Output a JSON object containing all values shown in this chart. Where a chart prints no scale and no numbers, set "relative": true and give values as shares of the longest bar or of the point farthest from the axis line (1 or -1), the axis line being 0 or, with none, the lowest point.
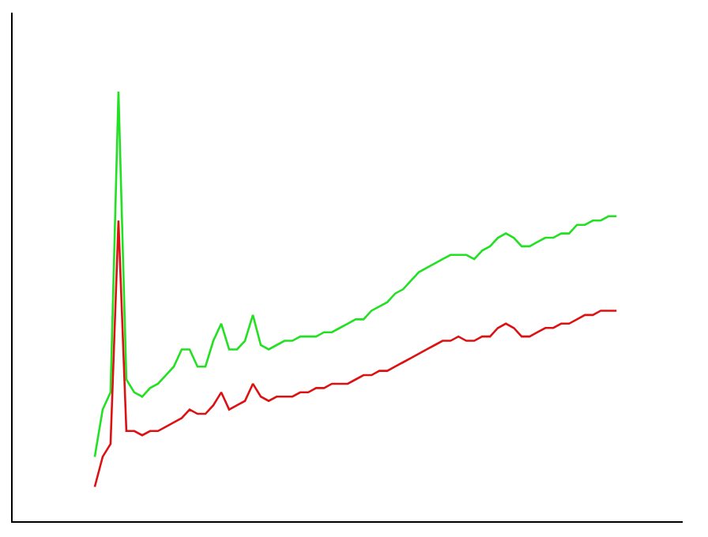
{
  "chart_data": {
    "type": "line",
    "relative": true,
    "tick_labels": false,
    "marker": "none",
    "categories": [
      null,
      null,
      null,
      null,
      null,
      null,
      null,
      null,
      null,
      null,
      null,
      null,
      null,
      null,
      null,
      null,
      null,
      null,
      null,
      null,
      null,
      null,
      null,
      null,
      null,
      null,
      null,
      null,
      null,
      null,
      null,
      null,
      null,
      null,
      null,
      null,
      null,
      null,
      null,
      null,
      null,
      null,
      null,
      null,
      null,
      null,
      null,
      null,
      null,
      null,
      null,
      null,
      null,
      null,
      null,
      null,
      null,
      null,
      null,
      null,
      null,
      null,
      null,
      null,
      null,
      null,
      null
    ],
    "series": [
      {
        "color": "#22e022",
        "values": [
          0.15,
          0.26,
          0.3,
          1,
          0.33,
          0.3,
          0.29,
          0.31,
          0.32,
          0.34,
          0.36,
          0.4,
          0.4,
          0.36,
          0.36,
          0.42,
          0.46,
          0.4,
          0.4,
          0.42,
          0.48,
          0.41,
          0.4,
          0.41,
          0.42,
          0.42,
          0.43,
          0.43,
          0.43,
          0.44,
          0.44,
          0.45,
          0.46,
          0.47,
          0.47,
          0.49,
          0.5,
          0.51,
          0.53,
          0.54,
          0.56,
          0.58,
          0.59,
          0.6,
          0.61,
          0.62,
          0.62,
          0.62,
          0.61,
          0.63,
          0.64,
          0.66,
          0.67,
          0.66,
          0.64,
          0.64,
          0.65,
          0.66,
          0.66,
          0.67,
          0.67,
          0.69,
          0.69,
          0.7,
          0.7,
          0.71,
          0.71
        ]
      },
      {
        "color": "#dd1111",
        "values": [
          0.08,
          0.15,
          0.18,
          0.7,
          0.21,
          0.21,
          0.2,
          0.21,
          0.21,
          0.22,
          0.23,
          0.24,
          0.26,
          0.25,
          0.25,
          0.27,
          0.3,
          0.26,
          0.27,
          0.28,
          0.32,
          0.29,
          0.28,
          0.29,
          0.29,
          0.29,
          0.3,
          0.3,
          0.31,
          0.31,
          0.32,
          0.32,
          0.32,
          0.33,
          0.34,
          0.34,
          0.35,
          0.35,
          0.36,
          0.37,
          0.38,
          0.39,
          0.4,
          0.41,
          0.42,
          0.42,
          0.43,
          0.42,
          0.42,
          0.43,
          0.43,
          0.45,
          0.46,
          0.45,
          0.43,
          0.43,
          0.44,
          0.45,
          0.45,
          0.46,
          0.46,
          0.47,
          0.48,
          0.48,
          0.49,
          0.49,
          0.49
        ]
      }
    ]
  }
}
